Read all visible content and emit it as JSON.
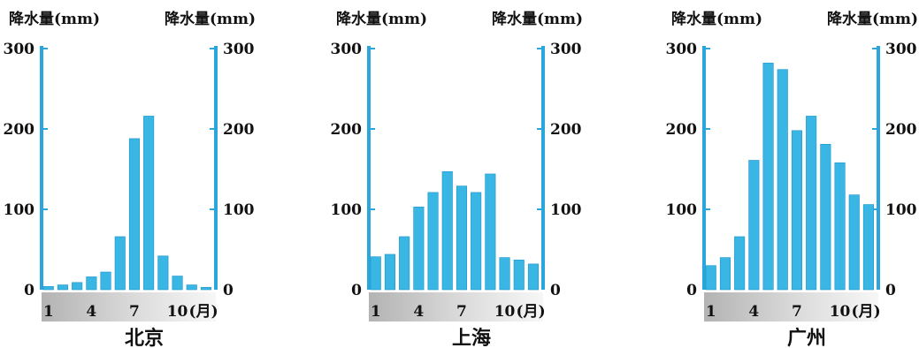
{
  "chart_data": [
    {
      "type": "bar",
      "title": "北京",
      "ylabel_left": "降水量(mm)",
      "ylabel_right": "降水量(mm)",
      "xunit": "(月)",
      "ylim": [
        0,
        300
      ],
      "yticks": [
        0,
        100,
        200,
        300
      ],
      "xticks": [
        {
          "label": "1",
          "month": 1
        },
        {
          "label": "4",
          "month": 4
        },
        {
          "label": "7",
          "month": 7
        },
        {
          "label": "10",
          "month": 10
        }
      ],
      "categories": [
        "1",
        "2",
        "3",
        "4",
        "5",
        "6",
        "7",
        "8",
        "9",
        "10",
        "11",
        "12"
      ],
      "values": [
        4,
        6,
        9,
        16,
        22,
        66,
        188,
        216,
        42,
        17,
        6,
        3
      ],
      "bar_color": "#39b6e4",
      "axis_color": "#2aa6dc"
    },
    {
      "type": "bar",
      "title": "上海",
      "ylabel_left": "降水量(mm)",
      "ylabel_right": "降水量(mm)",
      "xunit": "(月)",
      "ylim": [
        0,
        300
      ],
      "yticks": [
        0,
        100,
        200,
        300
      ],
      "xticks": [
        {
          "label": "1",
          "month": 1
        },
        {
          "label": "4",
          "month": 4
        },
        {
          "label": "7",
          "month": 7
        },
        {
          "label": "10",
          "month": 10
        }
      ],
      "categories": [
        "1",
        "2",
        "3",
        "4",
        "5",
        "6",
        "7",
        "8",
        "9",
        "10",
        "11",
        "12"
      ],
      "values": [
        41,
        44,
        66,
        103,
        121,
        147,
        129,
        121,
        144,
        40,
        37,
        32
      ],
      "bar_color": "#39b6e4",
      "axis_color": "#2aa6dc"
    },
    {
      "type": "bar",
      "title": "广州",
      "ylabel_left": "降水量(mm)",
      "ylabel_right": "降水量(mm)",
      "xunit": "(月)",
      "ylim": [
        0,
        300
      ],
      "yticks": [
        0,
        100,
        200,
        300
      ],
      "xticks": [
        {
          "label": "1",
          "month": 1
        },
        {
          "label": "4",
          "month": 4
        },
        {
          "label": "7",
          "month": 7
        },
        {
          "label": "10",
          "month": 10
        }
      ],
      "categories": [
        "1",
        "2",
        "3",
        "4",
        "5",
        "6",
        "7",
        "8",
        "9",
        "10",
        "11",
        "12"
      ],
      "values": [
        30,
        40,
        66,
        161,
        282,
        274,
        198,
        216,
        181,
        158,
        118,
        106
      ],
      "bar_color": "#39b6e4",
      "axis_color": "#2aa6dc"
    }
  ]
}
